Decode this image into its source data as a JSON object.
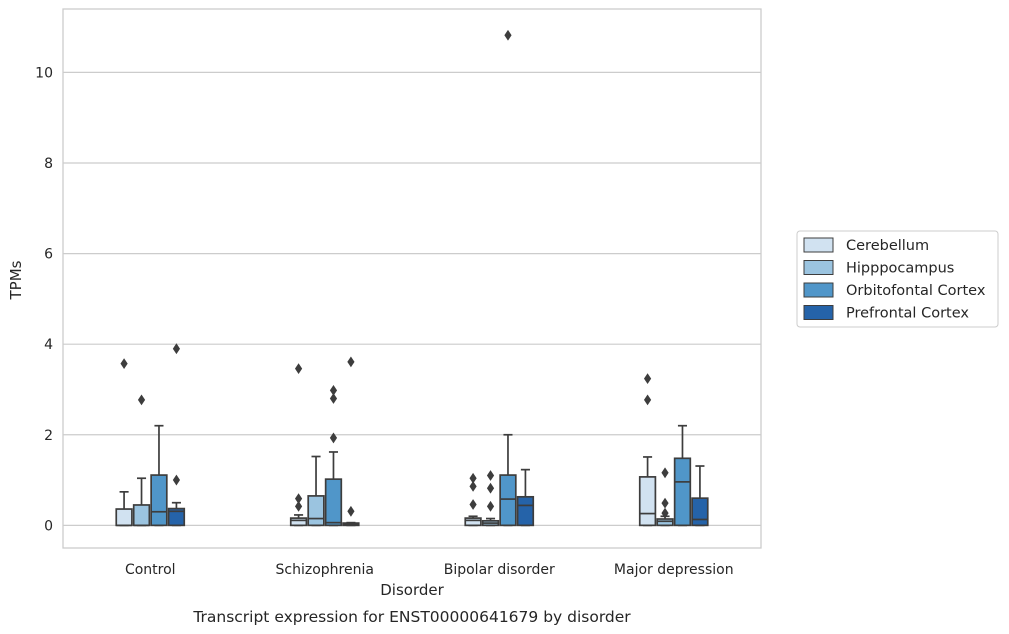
{
  "chart_data": {
    "type": "box",
    "caption": "Transcript expression for ENST00000641679 by disorder",
    "xlabel": "Disorder",
    "ylabel": "TPMs",
    "ylim": [
      -0.5,
      11.4
    ],
    "yticks": [
      0,
      2,
      4,
      6,
      8,
      10
    ],
    "grid": "horizontal",
    "legend_position": "right",
    "categories": [
      "Control",
      "Schizophrenia",
      "Bipolar disorder",
      "Major depression"
    ],
    "series": [
      {
        "name": "Cerebellum",
        "color": "#d1e2f1",
        "boxes": [
          {
            "whisker_low": 0,
            "q1": 0,
            "median": 0,
            "q3": 0.36,
            "whisker_high": 0.74,
            "outliers": [
              3.57
            ]
          },
          {
            "whisker_low": 0,
            "q1": 0,
            "median": 0.11,
            "q3": 0.16,
            "whisker_high": 0.23,
            "outliers": [
              0.42,
              0.59,
              3.46
            ]
          },
          {
            "whisker_low": 0,
            "q1": 0,
            "median": 0.11,
            "q3": 0.16,
            "whisker_high": 0.2,
            "outliers": [
              0.46,
              0.86,
              1.04
            ]
          },
          {
            "whisker_low": 0,
            "q1": 0,
            "median": 0.26,
            "q3": 1.07,
            "whisker_high": 1.51,
            "outliers": [
              2.77,
              3.24
            ]
          }
        ]
      },
      {
        "name": "Hipppocampus",
        "color": "#9bc4e0",
        "boxes": [
          {
            "whisker_low": 0,
            "q1": 0,
            "median": 0,
            "q3": 0.45,
            "whisker_high": 1.04,
            "outliers": [
              2.77
            ]
          },
          {
            "whisker_low": 0,
            "q1": 0,
            "median": 0.15,
            "q3": 0.65,
            "whisker_high": 1.52,
            "outliers": []
          },
          {
            "whisker_low": 0,
            "q1": 0,
            "median": 0.05,
            "q3": 0.1,
            "whisker_high": 0.15,
            "outliers": [
              0.42,
              0.82,
              1.1
            ]
          },
          {
            "whisker_low": 0,
            "q1": 0,
            "median": 0.09,
            "q3": 0.14,
            "whisker_high": 0.2,
            "outliers": [
              0.27,
              0.49,
              1.16
            ]
          }
        ]
      },
      {
        "name": "Orbitofontal Cortex",
        "color": "#5096c9",
        "boxes": [
          {
            "whisker_low": 0,
            "q1": 0,
            "median": 0.3,
            "q3": 1.11,
            "whisker_high": 2.2,
            "outliers": []
          },
          {
            "whisker_low": 0,
            "q1": 0,
            "median": 0.06,
            "q3": 1.02,
            "whisker_high": 1.62,
            "outliers": [
              1.93,
              2.8,
              2.98
            ]
          },
          {
            "whisker_low": 0,
            "q1": 0,
            "median": 0.58,
            "q3": 1.11,
            "whisker_high": 2.0,
            "outliers": [
              10.82
            ]
          },
          {
            "whisker_low": 0,
            "q1": 0,
            "median": 0.96,
            "q3": 1.48,
            "whisker_high": 2.2,
            "outliers": []
          }
        ]
      },
      {
        "name": "Prefrontal Cortex",
        "color": "#2563a9",
        "boxes": [
          {
            "whisker_low": 0,
            "q1": 0,
            "median": 0.31,
            "q3": 0.37,
            "whisker_high": 0.5,
            "outliers": [
              1.0,
              3.9
            ]
          },
          {
            "whisker_low": 0,
            "q1": 0,
            "median": 0.03,
            "q3": 0.05,
            "whisker_high": 0.06,
            "outliers": [
              0.31,
              3.61
            ]
          },
          {
            "whisker_low": 0,
            "q1": 0,
            "median": 0.44,
            "q3": 0.63,
            "whisker_high": 1.23,
            "outliers": []
          },
          {
            "whisker_low": 0,
            "q1": 0,
            "median": 0.13,
            "q3": 0.6,
            "whisker_high": 1.31,
            "outliers": []
          }
        ]
      }
    ]
  }
}
